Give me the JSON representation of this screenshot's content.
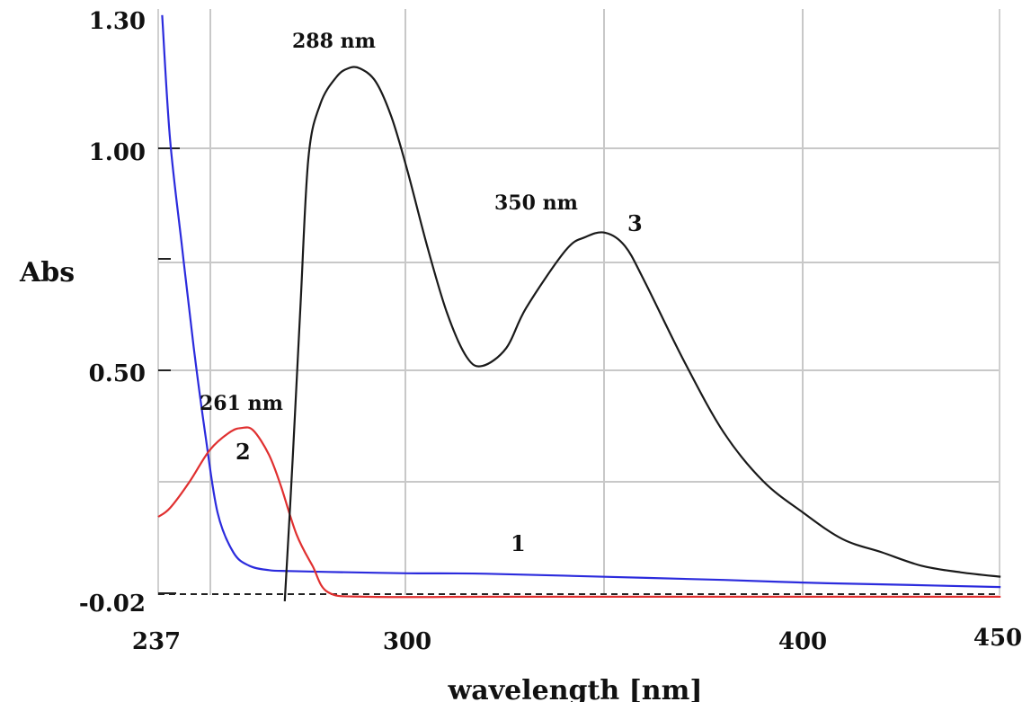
{
  "chart_data": {
    "type": "line",
    "xlabel": "wavelength [nm]",
    "ylabel": "Abs",
    "xlim": [
      237,
      450
    ],
    "ylim": [
      -0.02,
      1.3
    ],
    "x_ticks": [
      "237",
      "300",
      "400",
      "450"
    ],
    "y_ticks": [
      "1.30",
      "1.00",
      "0.50",
      "-0.02"
    ],
    "grid": true,
    "series": [
      {
        "name": "1",
        "color": "#2b2bdd",
        "x": [
          238,
          240,
          243,
          246,
          249,
          252,
          256,
          260,
          265,
          270,
          280,
          300,
          320,
          350,
          380,
          400,
          420,
          450
        ],
        "y": [
          1.3,
          1.02,
          0.78,
          0.55,
          0.35,
          0.18,
          0.09,
          0.06,
          0.05,
          0.048,
          0.046,
          0.043,
          0.042,
          0.035,
          0.028,
          0.022,
          0.018,
          0.012
        ]
      },
      {
        "name": "2",
        "color": "#e03030",
        "x": [
          237,
          240,
          245,
          250,
          255,
          258,
          261,
          265,
          268,
          272,
          276,
          280,
          290,
          320,
          350,
          400,
          450
        ],
        "y": [
          0.17,
          0.19,
          0.25,
          0.32,
          0.36,
          0.37,
          0.365,
          0.31,
          0.24,
          0.13,
          0.06,
          0.0,
          -0.01,
          -0.01,
          -0.01,
          -0.01,
          -0.01
        ]
      },
      {
        "name": "3",
        "color": "#1a1a1a",
        "x": [
          269,
          271,
          273,
          275,
          278,
          282,
          285,
          288,
          292,
          296,
          300,
          305,
          310,
          315,
          319,
          325,
          330,
          340,
          345,
          350,
          355,
          360,
          370,
          380,
          390,
          400,
          410,
          420,
          430,
          440,
          450
        ],
        "y": [
          -0.02,
          0.3,
          0.65,
          0.98,
          1.1,
          1.16,
          1.18,
          1.18,
          1.15,
          1.07,
          0.95,
          0.78,
          0.63,
          0.53,
          0.51,
          0.55,
          0.64,
          0.77,
          0.8,
          0.81,
          0.78,
          0.7,
          0.52,
          0.36,
          0.25,
          0.18,
          0.12,
          0.09,
          0.06,
          0.045,
          0.035
        ]
      }
    ],
    "annotations": [
      {
        "text": "288 nm"
      },
      {
        "text": "350 nm"
      },
      {
        "text": "261 nm"
      }
    ]
  }
}
